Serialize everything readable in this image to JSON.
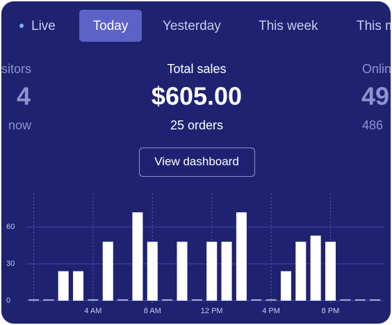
{
  "tabs": [
    "Live",
    "Today",
    "Yesterday",
    "This week",
    "This m"
  ],
  "stats": [
    {
      "label": "sitors",
      "value": "4",
      "detail": "now"
    },
    {
      "label": "Total sales",
      "value": "$605.00",
      "detail": "25 orders"
    },
    {
      "label": "Onlin",
      "value": "49",
      "detail": "486"
    }
  ],
  "button": "View dashboard",
  "chart": {
    "type": "bar",
    "categories": [
      null,
      null,
      null,
      null,
      "4 AM",
      null,
      null,
      null,
      "8 AM",
      null,
      null,
      null,
      "12 PM",
      null,
      null,
      null,
      "4 PM",
      null,
      null,
      null,
      "8 PM",
      null,
      null,
      null
    ],
    "values": [
      0,
      0,
      24,
      24,
      0,
      48,
      0,
      72,
      48,
      0,
      48,
      0,
      48,
      48,
      72,
      0,
      0,
      24,
      48,
      53,
      48,
      0,
      0,
      0
    ],
    "color": "#ffffff",
    "ylim": [
      0,
      80
    ],
    "yticks": [
      0,
      30,
      60
    ],
    "grid": true
  }
}
